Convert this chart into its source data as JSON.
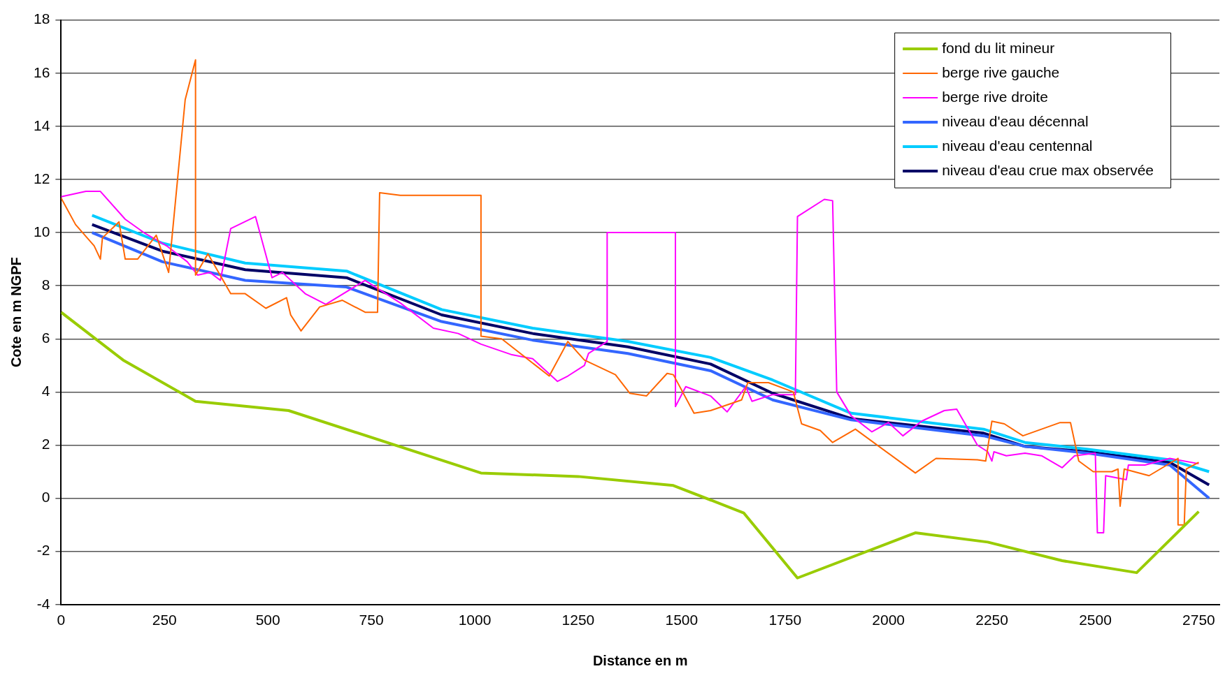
{
  "chart_data": {
    "type": "line",
    "xlabel": "Distance en m",
    "ylabel": "Cote en m NGPF",
    "xlim": [
      0,
      2800
    ],
    "xticks": [
      0,
      250,
      500,
      750,
      1000,
      1250,
      1500,
      1750,
      2000,
      2250,
      2500,
      2750
    ],
    "ylim": [
      -4,
      18
    ],
    "yticks": [
      -4,
      -2,
      0,
      2,
      4,
      6,
      8,
      10,
      12,
      14,
      16,
      18
    ],
    "grid": "y",
    "legend": "top right",
    "marker": "none",
    "line_style": "solid",
    "series": [
      {
        "name": "fond du lit mineur",
        "color": "#99cc00",
        "x": [
          0,
          150,
          325,
          550,
          1015,
          1250,
          1480,
          1650,
          1780,
          2065,
          2240,
          2420,
          2600,
          2750
        ],
        "values": [
          7,
          5.2,
          3.65,
          3.3,
          0.95,
          0.82,
          0.48,
          -0.55,
          -3.0,
          -1.3,
          -1.65,
          -2.35,
          -2.8,
          -0.5
        ]
      },
      {
        "name": "berge rive gauche",
        "color": "#ff6600",
        "x": [
          0,
          35,
          80,
          95,
          100,
          140,
          155,
          170,
          185,
          230,
          260,
          300,
          325,
          325,
          355,
          410,
          445,
          495,
          545,
          555,
          580,
          625,
          680,
          735,
          765,
          770,
          820,
          1015,
          1015,
          1065,
          1180,
          1225,
          1265,
          1340,
          1375,
          1415,
          1465,
          1480,
          1530,
          1570,
          1645,
          1660,
          1710,
          1770,
          1790,
          1835,
          1865,
          1920,
          2065,
          2115,
          2215,
          2235,
          2250,
          2280,
          2325,
          2370,
          2415,
          2440,
          2460,
          2495,
          2540,
          2555,
          2560,
          2570,
          2630,
          2700,
          2700,
          2715,
          2720,
          2750
        ],
        "values": [
          11.3,
          10.3,
          9.5,
          9.0,
          9.8,
          10.4,
          9.0,
          9.0,
          9.0,
          9.9,
          8.5,
          15.0,
          16.5,
          8.4,
          9.2,
          7.7,
          7.7,
          7.15,
          7.55,
          6.9,
          6.3,
          7.2,
          7.45,
          7.0,
          7.0,
          11.5,
          11.4,
          11.4,
          6.1,
          6.0,
          4.6,
          5.9,
          5.2,
          4.65,
          3.95,
          3.85,
          4.7,
          4.65,
          3.2,
          3.3,
          3.7,
          4.35,
          4.35,
          4.0,
          2.8,
          2.55,
          2.1,
          2.6,
          0.95,
          1.5,
          1.45,
          1.4,
          2.9,
          2.8,
          2.35,
          2.6,
          2.85,
          2.85,
          1.4,
          1.0,
          1.0,
          1.1,
          -0.3,
          1.1,
          0.85,
          1.5,
          -1.0,
          -1.0,
          1.1,
          1.35
        ]
      },
      {
        "name": "berge rive droite",
        "color": "#ff00ff",
        "x": [
          0,
          60,
          95,
          155,
          200,
          255,
          305,
          330,
          360,
          385,
          410,
          470,
          510,
          535,
          590,
          640,
          735,
          820,
          900,
          960,
          1015,
          1090,
          1140,
          1200,
          1225,
          1265,
          1275,
          1320,
          1320,
          1485,
          1485,
          1510,
          1570,
          1610,
          1655,
          1670,
          1720,
          1775,
          1780,
          1845,
          1865,
          1875,
          1910,
          1960,
          2000,
          2035,
          2080,
          2135,
          2165,
          2215,
          2240,
          2250,
          2255,
          2285,
          2330,
          2370,
          2420,
          2450,
          2500,
          2505,
          2520,
          2525,
          2575,
          2580,
          2620,
          2680,
          2750
        ],
        "values": [
          11.35,
          11.55,
          11.55,
          10.5,
          10.0,
          9.5,
          8.9,
          8.4,
          8.5,
          8.2,
          10.15,
          10.6,
          8.3,
          8.5,
          7.7,
          7.3,
          8.2,
          7.35,
          6.4,
          6.2,
          5.8,
          5.4,
          5.25,
          4.4,
          4.6,
          5.0,
          5.45,
          5.9,
          10.0,
          10.0,
          3.45,
          4.2,
          3.85,
          3.25,
          4.2,
          3.65,
          3.9,
          3.9,
          10.6,
          11.25,
          11.2,
          4.0,
          3.1,
          2.5,
          2.85,
          2.35,
          2.9,
          3.3,
          3.35,
          2.0,
          1.75,
          1.4,
          1.75,
          1.6,
          1.7,
          1.6,
          1.15,
          1.6,
          1.7,
          -1.3,
          -1.3,
          0.85,
          0.7,
          1.25,
          1.25,
          1.5,
          1.3
        ]
      },
      {
        "name": "niveau d'eau décennal",
        "color": "#3366ff",
        "x": [
          75,
          245,
          445,
          690,
          920,
          1140,
          1370,
          1570,
          1720,
          1910,
          2230,
          2330,
          2480,
          2680,
          2775
        ],
        "values": [
          10.0,
          8.9,
          8.2,
          7.95,
          6.65,
          5.95,
          5.45,
          4.8,
          3.7,
          2.95,
          2.35,
          1.95,
          1.7,
          1.25,
          0.0
        ]
      },
      {
        "name": "niveau d'eau centennal",
        "color": "#00ccff",
        "x": [
          75,
          245,
          445,
          690,
          920,
          1140,
          1370,
          1570,
          1720,
          1910,
          2230,
          2330,
          2480,
          2680,
          2775
        ],
        "values": [
          10.65,
          9.6,
          8.85,
          8.55,
          7.1,
          6.4,
          5.9,
          5.3,
          4.45,
          3.2,
          2.6,
          2.1,
          1.85,
          1.45,
          1.0
        ]
      },
      {
        "name": "niveau d'eau crue max observée",
        "color": "#000066",
        "x": [
          75,
          245,
          445,
          690,
          920,
          1140,
          1370,
          1570,
          1720,
          1910,
          2230,
          2330,
          2480,
          2680,
          2775
        ],
        "values": [
          10.3,
          9.3,
          8.6,
          8.3,
          6.9,
          6.2,
          5.7,
          5.05,
          3.95,
          3.0,
          2.45,
          1.95,
          1.75,
          1.35,
          0.5
        ]
      }
    ]
  }
}
